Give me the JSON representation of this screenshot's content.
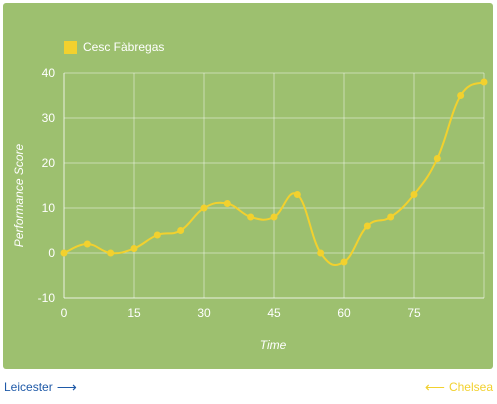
{
  "legend": {
    "label": "Cesc Fàbregas",
    "color": "#f2d12e"
  },
  "chart_data": {
    "type": "line",
    "title": "",
    "xlabel": "Time",
    "ylabel": "Performance Score",
    "xlim": [
      0,
      90
    ],
    "ylim": [
      -10,
      40
    ],
    "x_ticks": [
      0,
      15,
      30,
      45,
      60,
      75
    ],
    "y_ticks": [
      -10,
      0,
      10,
      20,
      30,
      40
    ],
    "grid": true,
    "legend_position": "top-left",
    "series": [
      {
        "name": "Cesc Fàbregas",
        "color": "#f2d12e",
        "x": [
          0,
          5,
          10,
          15,
          20,
          25,
          30,
          35,
          40,
          45,
          50,
          55,
          60,
          65,
          70,
          75,
          80,
          85,
          90
        ],
        "y": [
          0,
          2,
          0,
          1,
          4,
          5,
          10,
          11,
          8,
          8,
          13,
          0,
          -2,
          6,
          8,
          13,
          21,
          35,
          38
        ]
      }
    ]
  },
  "footer": {
    "left_team": "Leicester",
    "right_team": "Chelsea",
    "left_color": "#1f5aa8",
    "right_color": "#f2d12e"
  }
}
